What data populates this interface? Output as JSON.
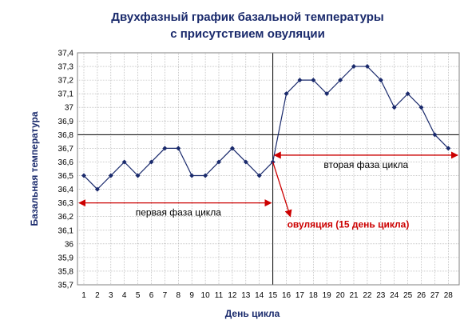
{
  "colors": {
    "series": "#1a2a6c",
    "title": "#1a2a6c",
    "annotation_arrow": "#cc0000",
    "ref_line": "#000000",
    "grid": "#aaaaaa"
  },
  "chart_data": {
    "type": "line",
    "title_lines": [
      "Двухфазный график базальной температуры",
      "с присутствием овуляции"
    ],
    "xlabel": "День цикла",
    "ylabel": "Базальная температура",
    "x": [
      1,
      2,
      3,
      4,
      5,
      6,
      7,
      8,
      9,
      10,
      11,
      12,
      13,
      14,
      15,
      16,
      17,
      18,
      19,
      20,
      21,
      22,
      23,
      24,
      25,
      26,
      27,
      28
    ],
    "series": [
      {
        "values": [
          36.5,
          36.4,
          36.5,
          36.6,
          36.5,
          36.6,
          36.7,
          36.7,
          36.5,
          36.5,
          36.6,
          36.7,
          36.6,
          36.5,
          36.6,
          37.1,
          37.2,
          37.2,
          37.1,
          37.2,
          37.3,
          37.3,
          37.2,
          37.0,
          37.1,
          37.0,
          36.8,
          36.7
        ],
        "color": "#1a2a6c"
      }
    ],
    "ylim": [
      35.7,
      37.4
    ],
    "yticks": [
      "35,7",
      "35,8",
      "35,9",
      "36",
      "36,1",
      "36,2",
      "36,3",
      "36,4",
      "36,5",
      "36,6",
      "36,7",
      "36,8",
      "36,9",
      "37",
      "37,1",
      "37,2",
      "37,3",
      "37,4"
    ],
    "xticks": [
      "1",
      "2",
      "3",
      "4",
      "5",
      "6",
      "7",
      "8",
      "9",
      "10",
      "11",
      "12",
      "13",
      "14",
      "15",
      "16",
      "17",
      "18",
      "19",
      "20",
      "21",
      "22",
      "23",
      "24",
      "25",
      "26",
      "27",
      "28"
    ],
    "grid": true,
    "reference_lines": {
      "horizontal_y": 36.8,
      "vertical_x": 15
    },
    "annotations": {
      "phase1": {
        "label": "первая фаза цикла",
        "from_x": 1,
        "to_x": 15,
        "y": 36.3
      },
      "phase2": {
        "label": "вторая фаза цикла",
        "from_x": 15,
        "to_x": 28,
        "y": 36.65
      },
      "ovulation": {
        "label": "овуляция (15 день цикла)",
        "from_x": 15,
        "from_y": 36.6,
        "to_x": 16.3,
        "to_y": 36.2
      }
    }
  }
}
